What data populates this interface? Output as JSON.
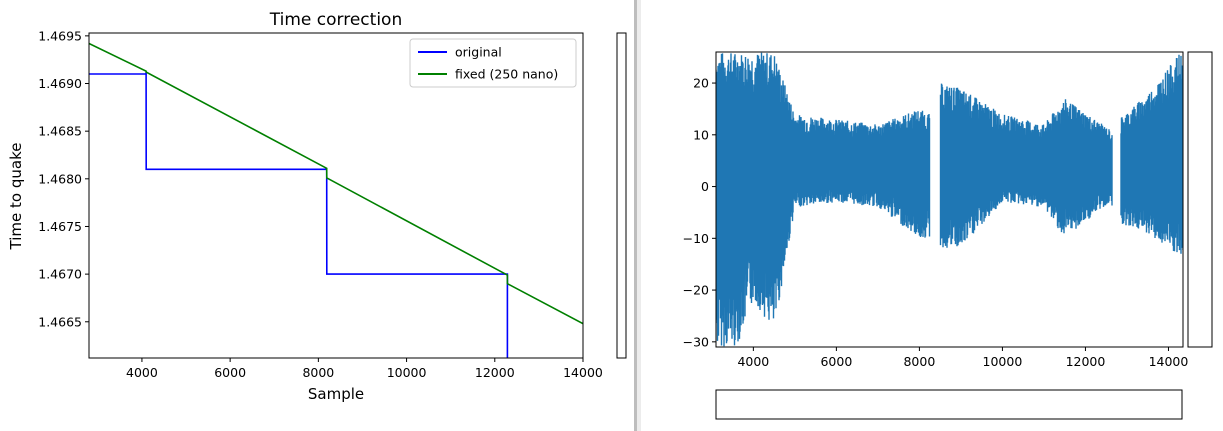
{
  "chart_data": [
    {
      "type": "line",
      "title": "Time correction",
      "xlabel": "Sample",
      "ylabel": "Time to quake",
      "xlim": [
        2800,
        14000
      ],
      "ylim": [
        1.46612,
        1.46953
      ],
      "xticks": [
        4000,
        6000,
        8000,
        10000,
        12000,
        14000
      ],
      "yticks": [
        1.4665,
        1.467,
        1.4675,
        1.468,
        1.4685,
        1.469,
        1.4695
      ],
      "grid": false,
      "legend_position": "top-right",
      "series": [
        {
          "name": "original",
          "color": "#0000ff",
          "x": [
            2800,
            4095,
            4095,
            4096,
            8190,
            8190,
            8191,
            12285,
            12285,
            12286,
            12286
          ],
          "y": [
            1.4691,
            1.4691,
            1.46912,
            1.4681,
            1.4681,
            1.46811,
            1.467,
            1.467,
            1.46699,
            1.46699,
            1.46612
          ]
        },
        {
          "name": "fixed (250 nano)",
          "color": "#008000",
          "x": [
            2800,
            4095,
            4096,
            8190,
            8191,
            12285,
            12286,
            14000
          ],
          "y": [
            1.46942,
            1.46913,
            1.46912,
            1.46811,
            1.46801,
            1.46699,
            1.4669,
            1.46648
          ]
        }
      ]
    },
    {
      "type": "line",
      "xlim": [
        3100,
        14350
      ],
      "ylim": [
        -31,
        26
      ],
      "xticks": [
        4000,
        6000,
        8000,
        10000,
        12000,
        14000
      ],
      "yticks": [
        -30,
        -20,
        -10,
        0,
        10,
        20
      ],
      "grid": false,
      "series": [
        {
          "color": "#1f77b4",
          "envelope": [
            {
              "x": 3100,
              "min": -31,
              "max": 26
            },
            {
              "x": 3600,
              "min": -31,
              "max": 26
            },
            {
              "x": 4000,
              "min": -22,
              "max": 26
            },
            {
              "x": 4500,
              "min": -28,
              "max": 26
            },
            {
              "x": 5000,
              "min": -4,
              "max": 14
            },
            {
              "x": 6000,
              "min": -3,
              "max": 13
            },
            {
              "x": 7000,
              "min": -4,
              "max": 12
            },
            {
              "x": 8000,
              "min": -10,
              "max": 15
            },
            {
              "x": 8250,
              "min": -10,
              "max": 14
            },
            {
              "x": 8500,
              "min": -12,
              "max": 20
            },
            {
              "x": 9000,
              "min": -12,
              "max": 19
            },
            {
              "x": 10000,
              "min": -3,
              "max": 14
            },
            {
              "x": 11000,
              "min": -4,
              "max": 12
            },
            {
              "x": 11500,
              "min": -10,
              "max": 17
            },
            {
              "x": 12600,
              "min": -3,
              "max": 11
            },
            {
              "x": 12800,
              "min": -7,
              "max": 13
            },
            {
              "x": 13500,
              "min": -9,
              "max": 18
            },
            {
              "x": 14300,
              "min": -14,
              "max": 26
            }
          ],
          "gaps": [
            [
              8250,
              8500
            ],
            [
              12650,
              12850
            ]
          ]
        }
      ]
    }
  ]
}
